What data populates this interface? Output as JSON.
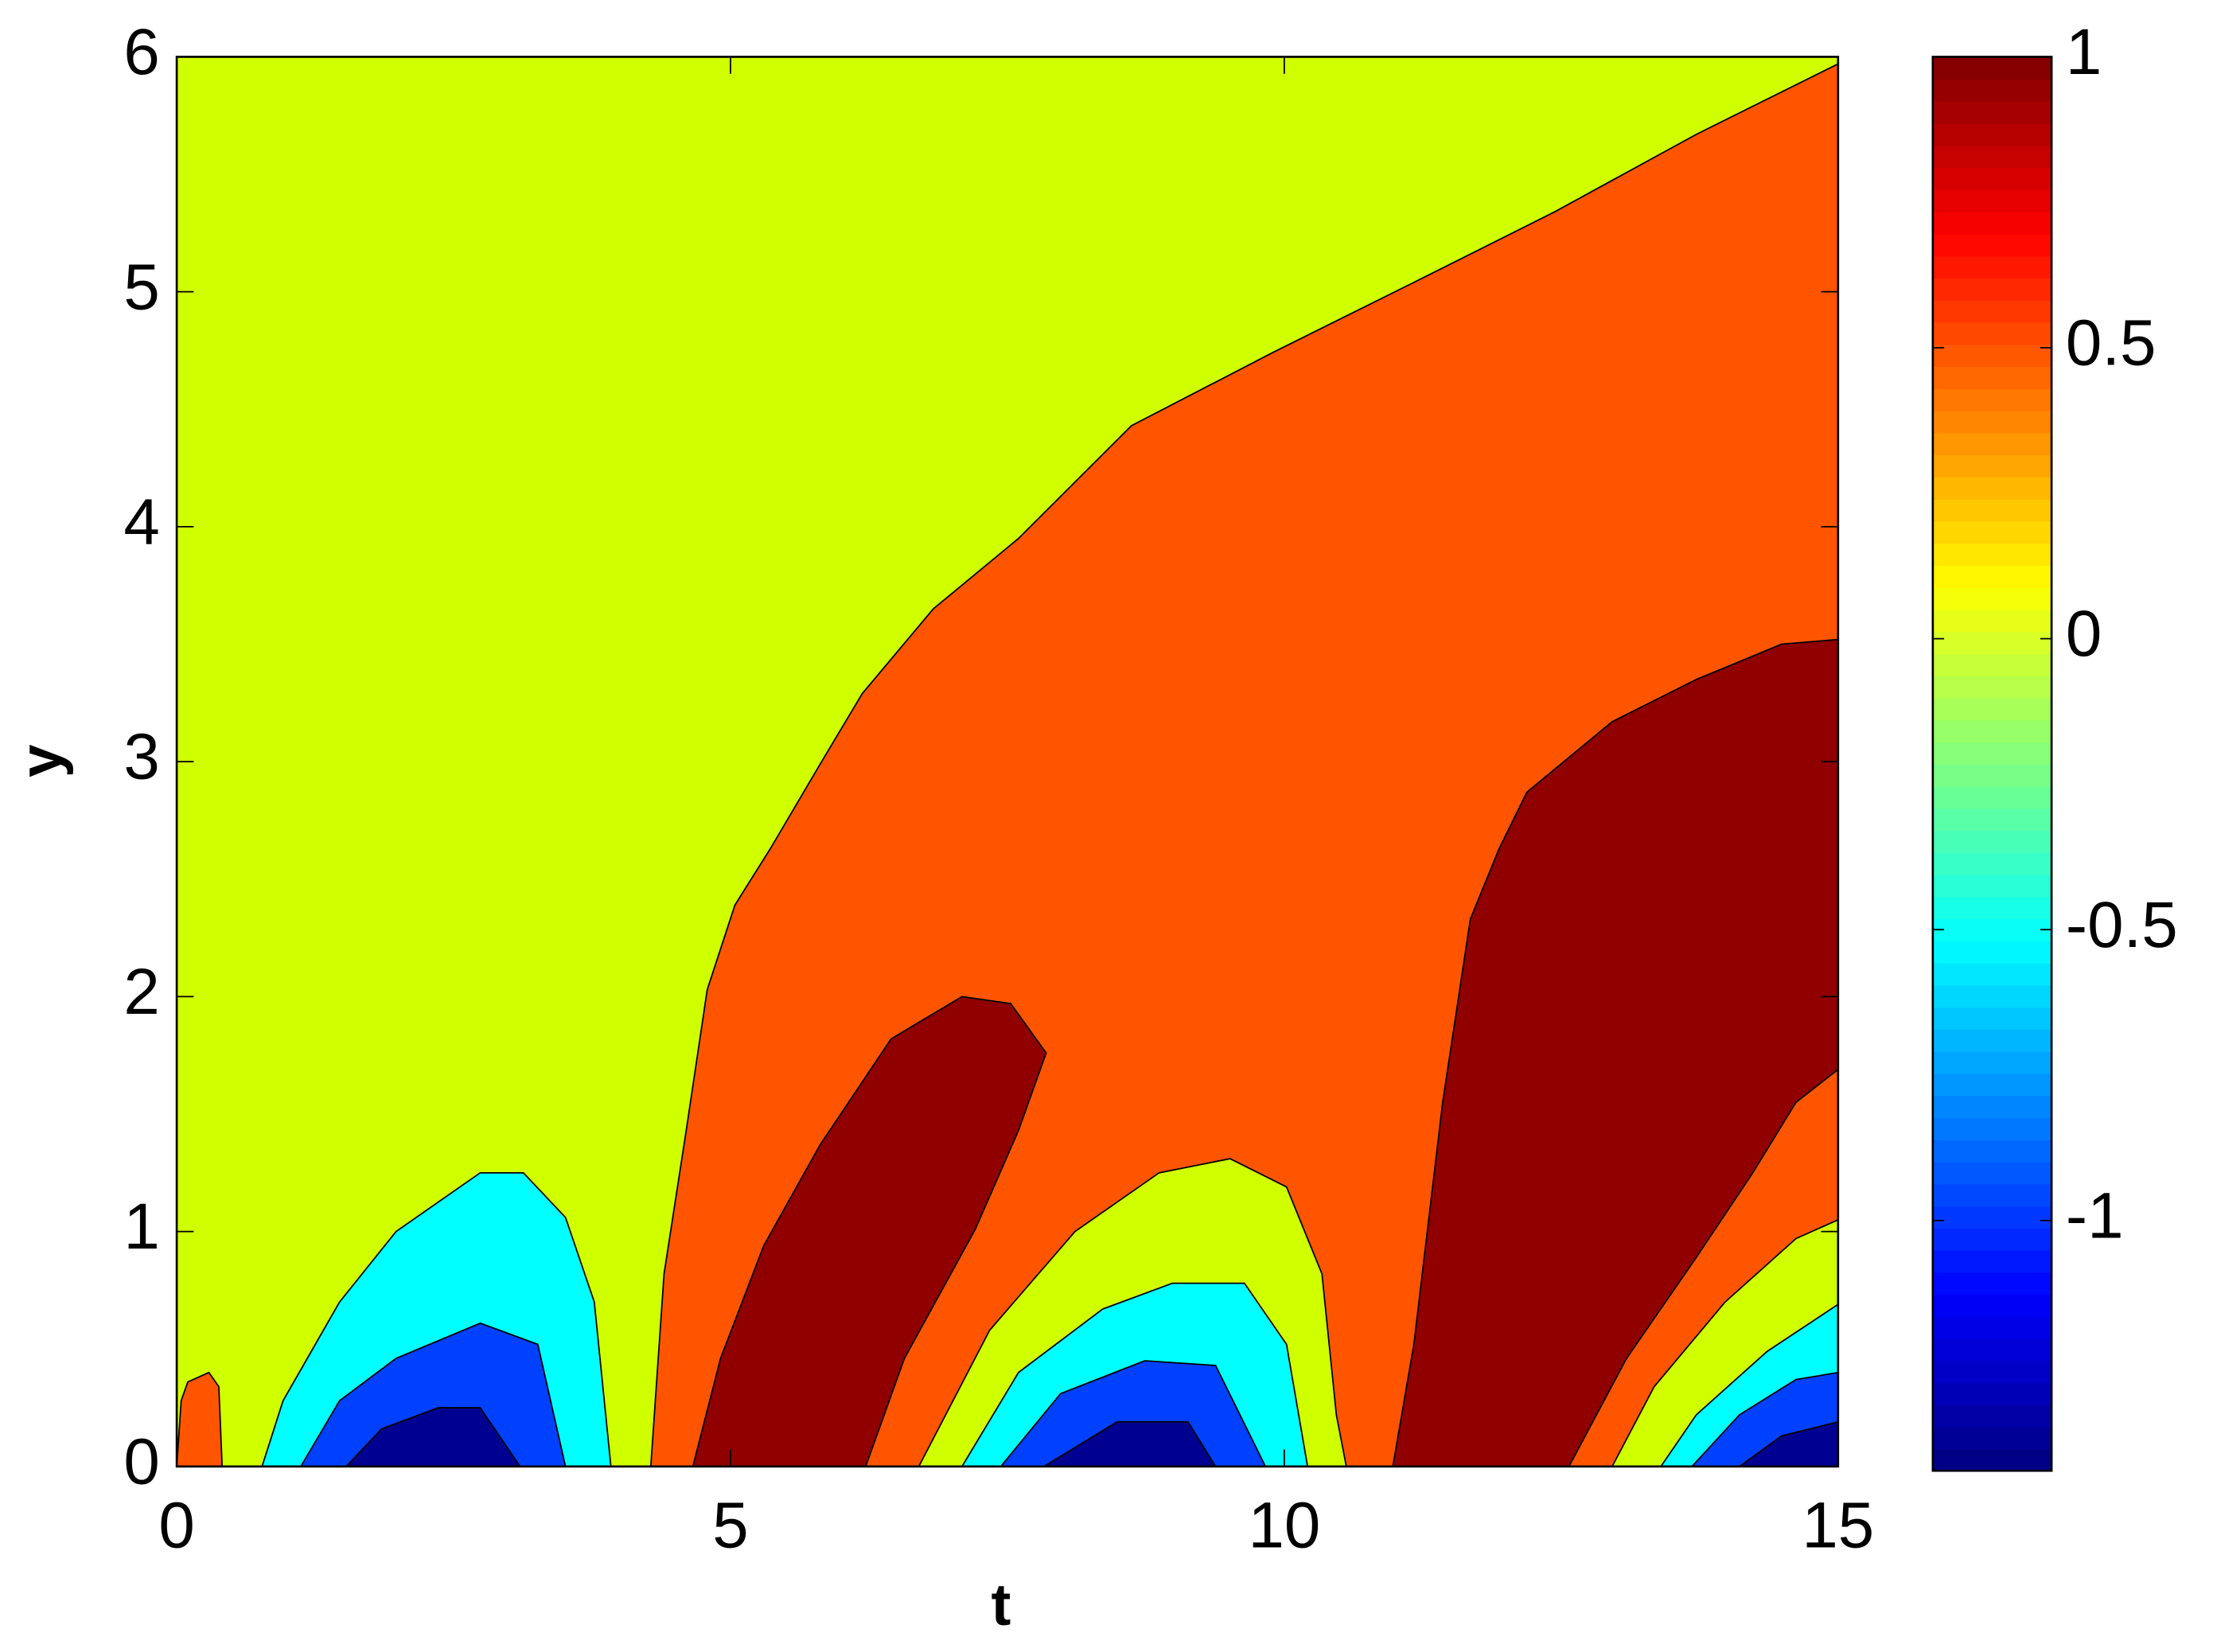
{
  "chart_data": {
    "type": "contour",
    "xlabel": "t",
    "ylabel": "y",
    "xlim": [
      0,
      15
    ],
    "ylim": [
      0,
      6
    ],
    "xticks": [
      0,
      5,
      10,
      15
    ],
    "yticks": [
      0,
      1,
      2,
      3,
      4,
      5,
      6
    ],
    "colormap": "jet",
    "clim": [
      -1.43,
      1
    ],
    "cticks": [
      -1,
      -0.5,
      0,
      0.5,
      1
    ],
    "regions": [
      {
        "color": "#d0ff00",
        "t": [
          0,
          0,
          15,
          15
        ],
        "y": [
          0,
          6,
          6,
          0
        ]
      },
      {
        "color": "#ff5500",
        "t": [
          0,
          0.04,
          0.1,
          0.29,
          0.38,
          0.41
        ],
        "y": [
          0,
          0.28,
          0.36,
          0.4,
          0.34,
          0
        ]
      },
      {
        "color": "#ff5500",
        "t": [
          4.28,
          4.4,
          4.6,
          4.79,
          5.04,
          5.36,
          5.81,
          6.19,
          6.83,
          7.6,
          8.62,
          9.89,
          11.17,
          12.44,
          13.72,
          15,
          15
        ],
        "y": [
          0,
          0.82,
          1.43,
          2.03,
          2.39,
          2.63,
          2.99,
          3.29,
          3.65,
          3.95,
          4.43,
          4.74,
          5.04,
          5.34,
          5.67,
          5.97,
          0
        ]
      },
      {
        "color": "#00ffff",
        "t": [
          0.77,
          0.96,
          1.47,
          1.98,
          2.74,
          3.13,
          3.51,
          3.77,
          3.92
        ],
        "y": [
          0,
          0.28,
          0.7,
          1.0,
          1.25,
          1.25,
          1.06,
          0.7,
          0
        ]
      },
      {
        "color": "#0040ff",
        "t": [
          1.12,
          1.47,
          1.98,
          2.74,
          3.26,
          3.51
        ],
        "y": [
          0,
          0.28,
          0.46,
          0.61,
          0.52,
          0
        ]
      },
      {
        "color": "#000090",
        "t": [
          1.53,
          1.85,
          2.36,
          2.74,
          3.1
        ],
        "y": [
          0,
          0.16,
          0.25,
          0.25,
          0
        ]
      },
      {
        "color": "#900000",
        "t": [
          4.66,
          4.91,
          5.3,
          5.81,
          6.45,
          7.09,
          7.53,
          7.85,
          7.6,
          7.21,
          6.57,
          6.22
        ],
        "y": [
          0,
          0.46,
          0.94,
          1.37,
          1.82,
          2.0,
          1.97,
          1.76,
          1.43,
          1.01,
          0.46,
          0
        ]
      },
      {
        "color": "#d0ff00",
        "t": [
          6.7,
          7.34,
          8.11,
          8.87,
          9.51,
          10.02,
          10.34,
          10.47,
          10.56
        ],
        "y": [
          0,
          0.58,
          1.0,
          1.25,
          1.31,
          1.19,
          0.82,
          0.22,
          0
        ]
      },
      {
        "color": "#00ffff",
        "t": [
          7.09,
          7.6,
          8.36,
          8.99,
          9.64,
          10.02,
          10.21
        ],
        "y": [
          0,
          0.4,
          0.67,
          0.78,
          0.78,
          0.52,
          0
        ]
      },
      {
        "color": "#0040ff",
        "t": [
          7.44,
          7.98,
          8.74,
          9.38,
          9.83
        ],
        "y": [
          0,
          0.31,
          0.45,
          0.43,
          0
        ]
      },
      {
        "color": "#000090",
        "t": [
          7.83,
          8.49,
          9.13,
          9.38
        ],
        "y": [
          0,
          0.19,
          0.19,
          0
        ]
      },
      {
        "color": "#900000",
        "t": [
          10.98,
          11.17,
          11.43,
          11.68,
          11.94,
          12.19,
          12.96,
          13.72,
          14.49,
          15,
          15,
          14.62,
          14.23,
          13.72,
          13.09,
          12.57
        ],
        "y": [
          0,
          0.52,
          1.55,
          2.33,
          2.63,
          2.87,
          3.17,
          3.35,
          3.5,
          3.52,
          1.69,
          1.55,
          1.25,
          0.89,
          0.46,
          0
        ]
      },
      {
        "color": "#d0ff00",
        "t": [
          12.96,
          13.34,
          13.98,
          14.62,
          15,
          15
        ],
        "y": [
          0,
          0.34,
          0.7,
          0.97,
          1.05,
          0
        ]
      },
      {
        "color": "#00ffff",
        "t": [
          13.4,
          13.72,
          14.36,
          15,
          15
        ],
        "y": [
          0,
          0.22,
          0.49,
          0.69,
          0
        ]
      },
      {
        "color": "#0040ff",
        "t": [
          13.68,
          14.11,
          14.62,
          15,
          15
        ],
        "y": [
          0,
          0.22,
          0.37,
          0.4,
          0
        ]
      },
      {
        "color": "#000090",
        "t": [
          14.11,
          14.49,
          15,
          15
        ],
        "y": [
          0,
          0.13,
          0.19,
          0
        ]
      }
    ]
  }
}
